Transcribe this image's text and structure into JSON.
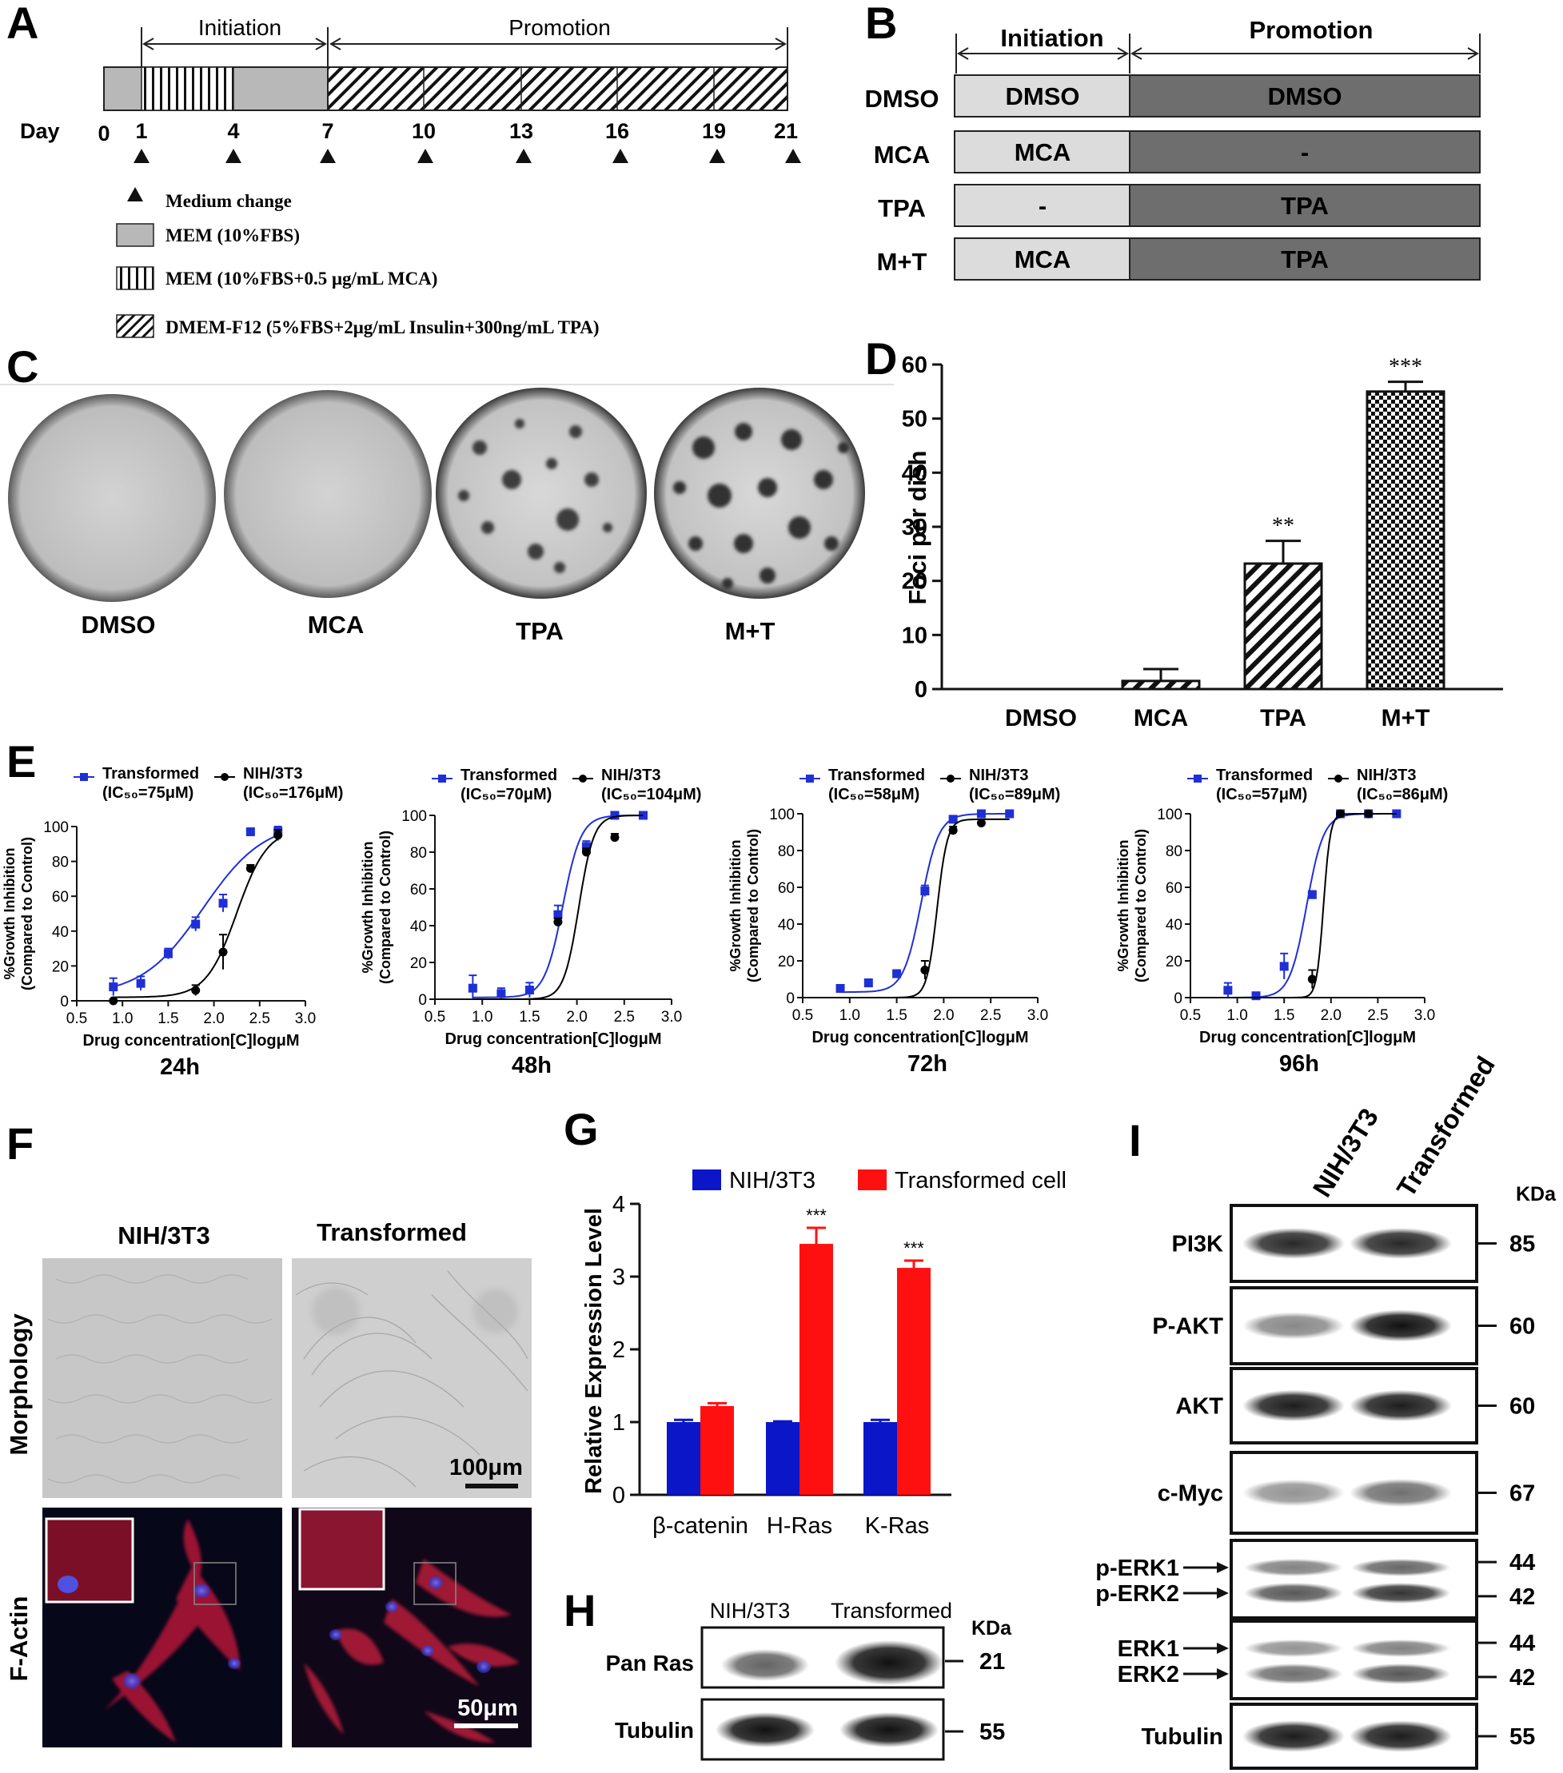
{
  "panels": {
    "A": {
      "letter": "A",
      "phases": {
        "initiation": "Initiation",
        "promotion": "Promotion"
      },
      "day_label": "Day",
      "days": [
        "0",
        "1",
        "4",
        "7",
        "10",
        "13",
        "16",
        "19",
        "21"
      ],
      "legend": [
        {
          "key": "medium",
          "text": "Medium change"
        },
        {
          "key": "mem",
          "text": "MEM (10%FBS)"
        },
        {
          "key": "mca",
          "text": "MEM (10%FBS+0.5 μg/mL MCA)"
        },
        {
          "key": "tpa",
          "text": "DMEM-F12 (5%FBS+2μg/mL Insulin+300ng/mL TPA)"
        }
      ]
    },
    "B": {
      "letter": "B",
      "headers": {
        "initiation": "Initiation",
        "promotion": "Promotion"
      },
      "rows": [
        {
          "label": "DMSO",
          "initiation": "DMSO",
          "promotion": "DMSO"
        },
        {
          "label": "MCA",
          "initiation": "MCA",
          "promotion": "-"
        },
        {
          "label": "TPA",
          "initiation": "-",
          "promotion": "TPA"
        },
        {
          "label": "M+T",
          "initiation": "MCA",
          "promotion": "TPA"
        }
      ]
    },
    "C": {
      "letter": "C",
      "labels": [
        "DMSO",
        "MCA",
        "TPA",
        "M+T"
      ]
    },
    "D": {
      "letter": "D"
    },
    "E": {
      "letter": "E"
    },
    "F": {
      "letter": "F",
      "columns": [
        "NIH/3T3",
        "Transformed"
      ],
      "rows": [
        "Morphology",
        "F-Actin"
      ],
      "scale_top": "100μm",
      "scale_bottom": "50μm"
    },
    "G": {
      "letter": "G"
    },
    "H": {
      "letter": "H",
      "columns": [
        "NIH/3T3",
        "Transformed"
      ],
      "kda": "KDa",
      "bands": [
        {
          "label": "Pan Ras",
          "kda": "21"
        },
        {
          "label": "Tubulin",
          "kda": "55"
        }
      ]
    },
    "I": {
      "letter": "I",
      "columns": [
        "NIH/3T3",
        "Transformed"
      ],
      "kda": "KDa",
      "bands": [
        {
          "label": "PI3K",
          "kda": "85"
        },
        {
          "label": "P-AKT",
          "kda": "60"
        },
        {
          "label": "AKT",
          "kda": "60"
        },
        {
          "label": "c-Myc",
          "kda": "67"
        },
        {
          "label": "p-ERK1",
          "label2": "p-ERK2",
          "kda": "44",
          "kda2": "42"
        },
        {
          "label": "ERK1",
          "label2": "ERK2",
          "kda": "44",
          "kda2": "42"
        },
        {
          "label": "Tubulin",
          "kda": "55"
        }
      ]
    }
  },
  "chart_data": [
    {
      "id": "D",
      "type": "bar",
      "categories": [
        "DMSO",
        "MCA",
        "TPA",
        "M+T"
      ],
      "values": [
        0,
        1.5,
        23.2,
        55
      ],
      "errors": [
        0,
        2.2,
        4.2,
        1.8
      ],
      "significance": [
        "",
        "",
        "**",
        "***"
      ],
      "ylabel": "Foci per dish",
      "ylim": [
        0,
        60
      ],
      "yticks": [
        0,
        10,
        20,
        30,
        40,
        50,
        60
      ]
    },
    {
      "id": "E24",
      "type": "line",
      "subtitle": "24h",
      "xlabel": "Drug concentration[C]logμM",
      "ylabel": "%Growth Inhibition",
      "ylabel2": "(Compared to Control)",
      "xlim": [
        0.5,
        3.0
      ],
      "ylim": [
        0,
        100
      ],
      "xticks": [
        0.5,
        1.0,
        1.5,
        2.0,
        2.5,
        3.0
      ],
      "yticks": [
        0,
        20,
        40,
        60,
        80,
        100
      ],
      "series": [
        {
          "name": "Transformed",
          "ic50": "(IC₅₀=75μM)",
          "color": "#1f2fd6",
          "marker": "square",
          "x": [
            0.9,
            1.2,
            1.5,
            1.8,
            2.1,
            2.4,
            2.7
          ],
          "y": [
            8,
            10,
            27,
            44,
            56,
            97,
            97
          ],
          "err": [
            5,
            4,
            3,
            4,
            5,
            1,
            3
          ],
          "fit": {
            "bottom": 3,
            "top": 103,
            "logec50": 1.88,
            "hill": 1.3
          }
        },
        {
          "name": "NIH/3T3",
          "ic50": "(IC₅₀=176μM)",
          "color": "#000000",
          "marker": "circle",
          "x": [
            0.9,
            1.8,
            2.1,
            2.4,
            2.7
          ],
          "y": [
            0,
            6,
            28,
            76,
            95
          ],
          "err": [
            1,
            3,
            10,
            2,
            3
          ],
          "fit": {
            "bottom": 2,
            "top": 99,
            "logec50": 2.25,
            "hill": 2.6
          }
        }
      ]
    },
    {
      "id": "E48",
      "type": "line",
      "subtitle": "48h",
      "xlabel": "Drug concentration[C]logμM",
      "ylabel": "%Growth Inhibition",
      "ylabel2": "(Compared to Control)",
      "xlim": [
        0.5,
        3.0
      ],
      "ylim": [
        0,
        100
      ],
      "xticks": [
        0.5,
        1.0,
        1.5,
        2.0,
        2.5,
        3.0
      ],
      "yticks": [
        0,
        20,
        40,
        60,
        80,
        100
      ],
      "series": [
        {
          "name": "Transformed",
          "ic50": "(IC₅₀=70μM)",
          "color": "#1f2fd6",
          "marker": "square",
          "x": [
            0.9,
            1.2,
            1.5,
            1.8,
            2.1,
            2.4,
            2.7
          ],
          "y": [
            6,
            3,
            5,
            46,
            83,
            100,
            100
          ],
          "err": [
            7,
            3,
            4,
            5,
            3,
            1,
            1
          ],
          "fit": {
            "bottom": 1,
            "top": 100,
            "logec50": 1.85,
            "hill": 4.5
          }
        },
        {
          "name": "NIH/3T3",
          "ic50": "(IC₅₀=104μM)",
          "color": "#000000",
          "marker": "circle",
          "x": [
            1.8,
            2.1,
            2.4
          ],
          "y": [
            42,
            80,
            88
          ],
          "err": [
            2,
            2,
            2
          ],
          "fit": {
            "bottom": 0,
            "top": 100,
            "logec50": 2.02,
            "hill": 5.5
          }
        }
      ]
    },
    {
      "id": "E72",
      "type": "line",
      "subtitle": "72h",
      "xlabel": "Drug concentration[C]logμM",
      "ylabel": "%Growth Inhibition",
      "ylabel2": "(Compared to Control)",
      "xlim": [
        0.5,
        3.0
      ],
      "ylim": [
        0,
        100
      ],
      "xticks": [
        0.5,
        1.0,
        1.5,
        2.0,
        2.5,
        3.0
      ],
      "yticks": [
        0,
        20,
        40,
        60,
        80,
        100
      ],
      "series": [
        {
          "name": "Transformed",
          "ic50": "(IC₅₀=58μM)",
          "color": "#1f2fd6",
          "marker": "square",
          "x": [
            0.9,
            1.2,
            1.5,
            1.8,
            2.1,
            2.4,
            2.7
          ],
          "y": [
            5,
            8,
            13,
            58,
            97,
            100,
            100
          ],
          "err": [
            1,
            2,
            2,
            3,
            1,
            1,
            1
          ],
          "fit": {
            "bottom": 3,
            "top": 100,
            "logec50": 1.76,
            "hill": 4.6
          }
        },
        {
          "name": "NIH/3T3",
          "ic50": "(IC₅₀=89μM)",
          "color": "#000000",
          "marker": "circle",
          "x": [
            1.8,
            2.1,
            2.4
          ],
          "y": [
            15,
            91,
            95
          ],
          "err": [
            5,
            2,
            1
          ],
          "fit": {
            "bottom": 0,
            "top": 97,
            "logec50": 1.93,
            "hill": 8
          }
        }
      ]
    },
    {
      "id": "E96",
      "type": "line",
      "subtitle": "96h",
      "xlabel": "Drug concentration[C]logμM",
      "ylabel": "%Growth Inhibition",
      "ylabel2": "(Compared to Control)",
      "xlim": [
        0.5,
        3.0
      ],
      "ylim": [
        0,
        100
      ],
      "xticks": [
        0.5,
        1.0,
        1.5,
        2.0,
        2.5,
        3.0
      ],
      "yticks": [
        0,
        20,
        40,
        60,
        80,
        100
      ],
      "series": [
        {
          "name": "Transformed",
          "ic50": "(IC₅₀=57μM)",
          "color": "#1f2fd6",
          "marker": "square",
          "x": [
            0.9,
            1.2,
            1.5,
            1.8,
            2.1,
            2.4,
            2.7
          ],
          "y": [
            4,
            1,
            17,
            56,
            100,
            100,
            100
          ],
          "err": [
            4,
            1,
            7,
            2,
            1,
            1,
            1
          ],
          "fit": {
            "bottom": 0,
            "top": 100,
            "logec50": 1.74,
            "hill": 4.8
          }
        },
        {
          "name": "NIH/3T3",
          "ic50": "(IC₅₀=86μM)",
          "color": "#000000",
          "marker": "circle",
          "x": [
            1.8,
            2.1,
            2.4
          ],
          "y": [
            10,
            100,
            100
          ],
          "err": [
            5,
            1,
            1
          ],
          "fit": {
            "bottom": 0,
            "top": 100,
            "logec50": 1.92,
            "hill": 12
          }
        }
      ]
    },
    {
      "id": "G",
      "type": "bar",
      "categories": [
        "β-catenin",
        "H-Ras",
        "K-Ras"
      ],
      "ylabel": "Relative Expression Level",
      "ylim": [
        0,
        4
      ],
      "yticks": [
        0,
        1,
        2,
        3,
        4
      ],
      "legend_position": "top",
      "significance": [
        "",
        "***",
        "***"
      ],
      "series": [
        {
          "name": "NIH/3T3",
          "color": "#0b16c8",
          "values": [
            1.0,
            1.0,
            1.0
          ],
          "errors": [
            0.03,
            0.01,
            0.03
          ]
        },
        {
          "name": "Transformed cell",
          "color": "#ff1010",
          "values": [
            1.22,
            3.45,
            3.12
          ],
          "errors": [
            0.04,
            0.22,
            0.1
          ]
        }
      ]
    }
  ]
}
